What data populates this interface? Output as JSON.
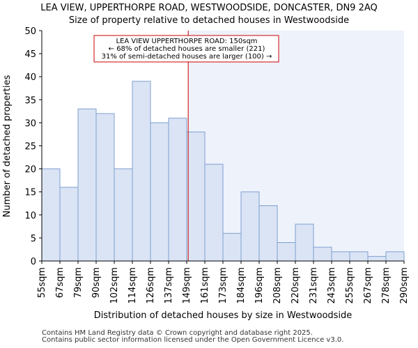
{
  "colors": {
    "bar_fill": "#dae4f4",
    "bar_edge": "#7f9fd0",
    "highlight_region": "#eef2fb",
    "marker_line": "#cc0000",
    "annotation_border": "#cc0000",
    "axis": "#000000"
  },
  "chart_data": {
    "type": "bar",
    "title_line1": "LEA VIEW, UPPERTHORPE ROAD, WESTWOODSIDE, DONCASTER, DN9 2AQ",
    "title_line2": "Size of property relative to detached houses in Westwoodside",
    "xlabel": "Distribution of detached houses by size in Westwoodside",
    "ylabel": "Number of detached properties",
    "ylim": [
      0,
      50
    ],
    "yticks": [
      0,
      5,
      10,
      15,
      20,
      25,
      30,
      35,
      40,
      45,
      50
    ],
    "bin_labels": [
      "55sqm",
      "67sqm",
      "79sqm",
      "90sqm",
      "102sqm",
      "114sqm",
      "126sqm",
      "137sqm",
      "149sqm",
      "161sqm",
      "173sqm",
      "184sqm",
      "196sqm",
      "208sqm",
      "220sqm",
      "231sqm",
      "243sqm",
      "255sqm",
      "267sqm",
      "278sqm",
      "290sqm"
    ],
    "values": [
      20,
      16,
      33,
      32,
      20,
      39,
      30,
      31,
      28,
      21,
      6,
      15,
      12,
      4,
      8,
      3,
      2,
      2,
      1,
      2
    ],
    "property_size_sqm": 150,
    "annotation": {
      "line1": "LEA VIEW UPPERTHORPE ROAD: 150sqm",
      "line2": "← 68% of detached houses are smaller (221)",
      "line3": "31% of semi-detached houses are larger (100) →"
    }
  },
  "footer": {
    "line1": "Contains HM Land Registry data © Crown copyright and database right 2025.",
    "line2": "Contains public sector information licensed under the Open Government Licence v3.0."
  }
}
